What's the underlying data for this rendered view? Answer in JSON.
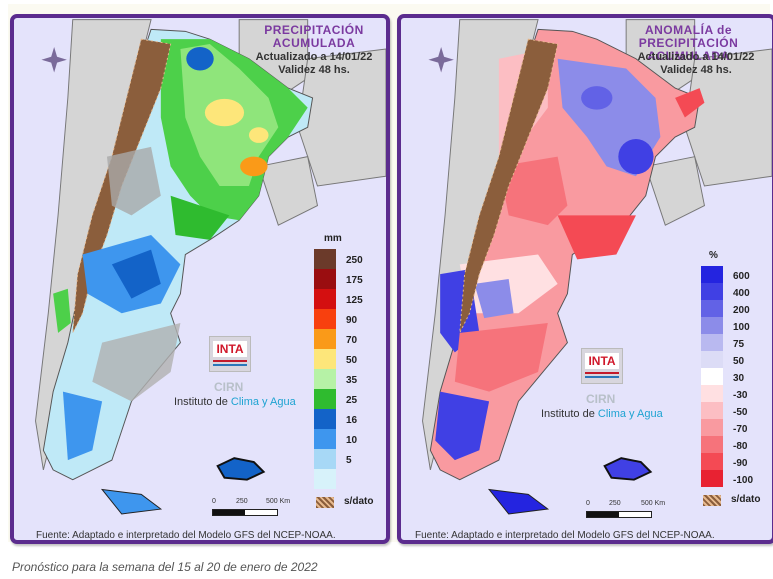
{
  "left_panel": {
    "title_line1": "PRECIPITACIÓN",
    "title_line2": "ACUMULADA",
    "updated": "Actualizado a 14/01/22",
    "validity": "Validez 48 hs.",
    "legend": {
      "unit": "mm",
      "items": [
        {
          "label": "250",
          "color": "#6b3a2a"
        },
        {
          "label": "175",
          "color": "#9a0d10"
        },
        {
          "label": "125",
          "color": "#d40f10"
        },
        {
          "label": "90",
          "color": "#f8400e"
        },
        {
          "label": "70",
          "color": "#fa9a18"
        },
        {
          "label": "50",
          "color": "#fde67a"
        },
        {
          "label": "35",
          "color": "#b6f2a6"
        },
        {
          "label": "25",
          "color": "#2fbb2f"
        },
        {
          "label": "16",
          "color": "#1363c8"
        },
        {
          "label": "10",
          "color": "#3e96ee"
        },
        {
          "label": "5",
          "color": "#a7d8f6"
        },
        {
          "label": "",
          "color": "#d7f2fa"
        }
      ],
      "no_data_label": "s/dato"
    }
  },
  "right_panel": {
    "title_line1": "ANOMALÍA de",
    "title_line2": "PRECIPITACIÓN ACUMULADA",
    "updated": "Actualizado a 14/01/22",
    "validity": "Validez 48 hs.",
    "legend": {
      "unit": "%",
      "items": [
        {
          "label": "600",
          "color": "#2424e0"
        },
        {
          "label": "400",
          "color": "#4040e4"
        },
        {
          "label": "200",
          "color": "#6262e6"
        },
        {
          "label": "100",
          "color": "#8c8ce9"
        },
        {
          "label": "75",
          "color": "#b9b9f0"
        },
        {
          "label": "50",
          "color": "#dcdcf6"
        },
        {
          "label": "30",
          "color": "#ffffff"
        },
        {
          "label": "-30",
          "color": "#ffe0e2"
        },
        {
          "label": "-50",
          "color": "#fcbec3"
        },
        {
          "label": "-70",
          "color": "#f99aa0"
        },
        {
          "label": "-80",
          "color": "#f6737b"
        },
        {
          "label": "-90",
          "color": "#f44a54"
        },
        {
          "label": "-100",
          "color": "#e82232"
        }
      ],
      "no_data_label": "s/dato"
    }
  },
  "branding": {
    "inta": "INTA",
    "cirn": "CIRN",
    "institute_prefix": "Instituto de",
    "institute_highlight": "Clima y Agua"
  },
  "scale": {
    "labels": [
      "0",
      "250",
      "500 Km"
    ]
  },
  "source": "Fuente: Adaptado e interpretado del Modelo GFS del NCEP-NOAA.",
  "caption": "Pronóstico para la semana del 15 al 20 de enero de 2022"
}
